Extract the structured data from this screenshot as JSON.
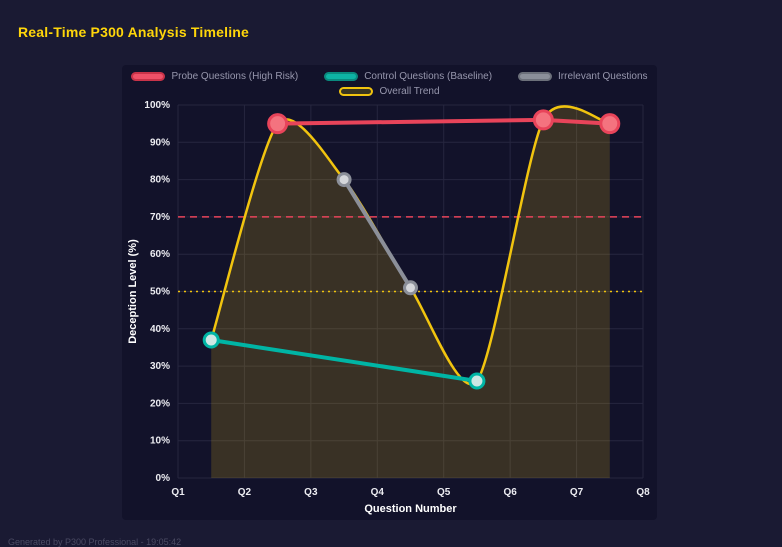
{
  "page": {
    "title": "Real-Time P300 Analysis Timeline",
    "footer": "Generated by P300 Professional - 19:05:42"
  },
  "chart_data": {
    "type": "line",
    "title": "Real-Time P300 Analysis Timeline",
    "xlabel": "Question Number",
    "ylabel": "Deception Level (%)",
    "x_ticks": [
      "Q1",
      "Q2",
      "Q3",
      "Q4",
      "Q5",
      "Q6",
      "Q7",
      "Q8"
    ],
    "x_range": [
      1,
      8
    ],
    "y_ticks": [
      "0%",
      "10%",
      "20%",
      "30%",
      "40%",
      "50%",
      "60%",
      "70%",
      "80%",
      "90%",
      "100%"
    ],
    "ylim": [
      0,
      100
    ],
    "legend_position": "top",
    "grid": true,
    "series": [
      {
        "name": "Probe Questions (High Risk)",
        "color": "#e8445a",
        "width": 4,
        "legend_row": 1,
        "smooth": false,
        "fill": false,
        "points": [
          [
            2.5,
            95
          ],
          [
            6.5,
            96
          ],
          [
            7.5,
            95
          ]
        ],
        "marker": {
          "r": 9,
          "fill": "#f4737f",
          "stroke_width": 3
        },
        "swatch": {
          "bg": "#ef5168",
          "border": "#c93349"
        }
      },
      {
        "name": "Control Questions (Baseline)",
        "color": "#00b5a5",
        "width": 4,
        "legend_row": 1,
        "smooth": false,
        "fill": false,
        "points": [
          [
            1.5,
            37
          ],
          [
            5.5,
            26
          ]
        ],
        "marker": {
          "r": 7,
          "fill": "#cde7e4",
          "stroke_width": 3
        },
        "swatch": {
          "bg": "#0eb3a4",
          "border": "#0a8a7e"
        }
      },
      {
        "name": "Irrelevant Questions",
        "color": "#8b8f99",
        "width": 4,
        "legend_row": 1,
        "smooth": false,
        "fill": false,
        "points": [
          [
            3.5,
            80
          ],
          [
            4.5,
            51
          ]
        ],
        "marker": {
          "r": 6,
          "fill": "#d4d6da",
          "stroke_width": 3
        },
        "swatch": {
          "bg": "#8b8f99",
          "border": "#6c707a"
        }
      },
      {
        "name": "Overall Trend",
        "color": "#f1c40f",
        "width": 2.5,
        "legend_row": 2,
        "smooth": true,
        "fill": true,
        "fill_color": "rgba(241,196,15,0.18)",
        "points": [
          [
            1.5,
            37
          ],
          [
            2.5,
            95
          ],
          [
            3.5,
            80
          ],
          [
            4.5,
            51
          ],
          [
            5.5,
            26
          ],
          [
            6.5,
            96
          ],
          [
            7.5,
            95
          ]
        ],
        "marker": {
          "r": 0,
          "fill": "none",
          "stroke_width": 0
        },
        "swatch": {
          "bg": "#3a3620",
          "border": "#f1c40f"
        }
      }
    ],
    "thresholds": [
      {
        "value": 70,
        "color": "#e8445a",
        "dash": "7 5"
      },
      {
        "value": 50,
        "color": "#f1c40f",
        "dash": "2 4"
      }
    ]
  }
}
